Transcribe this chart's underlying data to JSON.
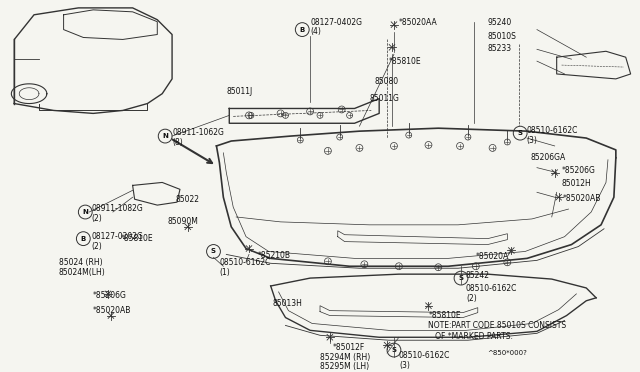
{
  "bg_color": "#f5f5f0",
  "line_color": "#333333",
  "text_color": "#111111",
  "fig_w": 6.4,
  "fig_h": 3.72,
  "note_line1": "NOTE:PART CODE 85010S CONSISTS",
  "note_line2": "   OF *MARKED PARTS.",
  "diagram_num": "^850*000?"
}
